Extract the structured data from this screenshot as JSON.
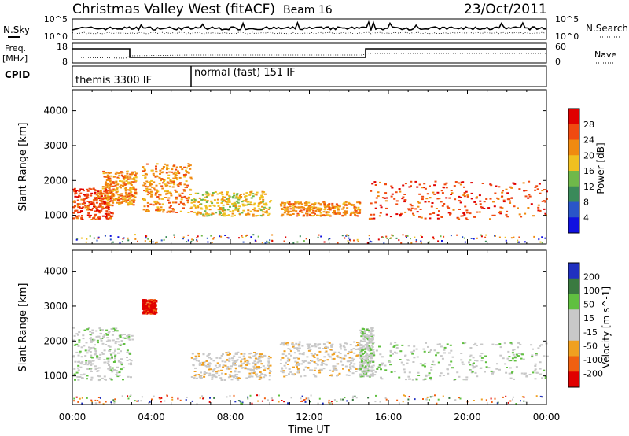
{
  "header": {
    "title": "Christmas Valley West (fitACF)",
    "beam": "Beam 16",
    "date": "23/Oct/2011"
  },
  "noise_panel": {
    "left_label": "N.Sky",
    "right_label": "N.Search",
    "left_ticks": [
      "10^5",
      "10^0"
    ],
    "right_ticks": [
      "10^5",
      "10^0"
    ]
  },
  "freq_panel": {
    "left_label_1": "Freq.",
    "left_label_2": "[MHz]",
    "right_label": "Nave",
    "left_ticks": [
      "18",
      "8"
    ],
    "right_ticks": [
      "60",
      "0"
    ]
  },
  "cpid_panel": {
    "label": "CPID",
    "segments": [
      {
        "name": "themis 3300 IF",
        "start_hr": 0,
        "end_hr": 6
      },
      {
        "name": "normal (fast) 151 IF",
        "start_hr": 6,
        "end_hr": 24
      }
    ]
  },
  "power_panel": {
    "ylabel": "Slant Range [km]",
    "colorbar_label": "Power [dB]",
    "colorbar_ticks": [
      "28",
      "24",
      "20",
      "16",
      "12",
      "8",
      "4"
    ]
  },
  "velocity_panel": {
    "ylabel": "Slant Range [km]",
    "colorbar_label": "Velocity [m s^-1]",
    "colorbar_ticks": [
      "200",
      "100",
      "50",
      "15",
      "-15",
      "-50",
      "-100",
      "-200"
    ]
  },
  "x_axis": {
    "label": "Time UT",
    "ticks": [
      "00:00",
      "04:00",
      "08:00",
      "12:00",
      "16:00",
      "20:00",
      "00:00"
    ]
  },
  "y_ticks": [
    "1000",
    "2000",
    "3000",
    "4000"
  ],
  "colors": {
    "power_scale": [
      "#1010e0",
      "#2a55c8",
      "#3a8a5a",
      "#6fb84a",
      "#f0c020",
      "#f08a10",
      "#f04a10",
      "#e00000"
    ],
    "velocity_scale": [
      "#2030c0",
      "#3a7a40",
      "#60c040",
      "#c8c8c8",
      "#c8c8c8",
      "#f0a020",
      "#f06010",
      "#e00000"
    ]
  },
  "chart_data": [
    {
      "type": "heatmap",
      "title": "Power",
      "xlabel": "Time UT",
      "ylabel": "Slant Range [km]",
      "xlim": [
        0,
        24
      ],
      "ylim": [
        180,
        4600
      ],
      "zlim": [
        0,
        30
      ],
      "regions": [
        {
          "t0": 0.0,
          "t1": 2.0,
          "r0": 900,
          "r1": 1800,
          "level": 26
        },
        {
          "t0": 1.5,
          "t1": 3.2,
          "r0": 1300,
          "r1": 2300,
          "level": 22
        },
        {
          "t0": 3.5,
          "t1": 6.0,
          "r0": 1100,
          "r1": 2500,
          "level": 20
        },
        {
          "t0": 6.0,
          "t1": 10.0,
          "r0": 1000,
          "r1": 1700,
          "level": 18
        },
        {
          "t0": 10.5,
          "t1": 14.5,
          "r0": 1000,
          "r1": 1400,
          "level": 22
        },
        {
          "t0": 15.0,
          "t1": 24.0,
          "r0": 900,
          "r1": 2000,
          "level": 26
        }
      ]
    },
    {
      "type": "heatmap",
      "title": "Velocity",
      "xlabel": "Time UT",
      "ylabel": "Slant Range [km]",
      "xlim": [
        0,
        24
      ],
      "ylim": [
        180,
        4600
      ],
      "zlim": [
        -200,
        200
      ],
      "regions": [
        {
          "t0": 0.0,
          "t1": 3.0,
          "r0": 900,
          "r1": 2400,
          "level": 0
        },
        {
          "t0": 3.5,
          "t1": 4.2,
          "r0": 2800,
          "r1": 3200,
          "level": -200
        },
        {
          "t0": 6.0,
          "t1": 10.0,
          "r0": 900,
          "r1": 1700,
          "level": -50
        },
        {
          "t0": 10.5,
          "t1": 14.5,
          "r0": 1000,
          "r1": 2000,
          "level": -50
        },
        {
          "t0": 14.5,
          "t1": 15.2,
          "r0": 1000,
          "r1": 2400,
          "level": 50
        },
        {
          "t0": 15.0,
          "t1": 24.0,
          "r0": 900,
          "r1": 2000,
          "level": 0
        }
      ]
    }
  ]
}
